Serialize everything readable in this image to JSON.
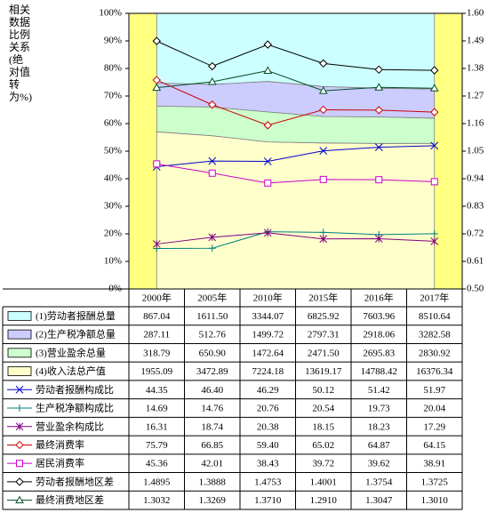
{
  "chart_data": {
    "type": "area",
    "y_label": "相关数据比例关系(绝对值转为%)",
    "categories": [
      "2000年",
      "2005年",
      "2010年",
      "2015年",
      "2016年",
      "2017年"
    ],
    "ylim": [
      0,
      100
    ],
    "yticks": [
      {
        "value": 0,
        "label": "0%"
      },
      {
        "value": 10,
        "label": "10%"
      },
      {
        "value": 20,
        "label": "20%"
      },
      {
        "value": 30,
        "label": "30%"
      },
      {
        "value": 40,
        "label": "40%"
      },
      {
        "value": 50,
        "label": "50%"
      },
      {
        "value": 60,
        "label": "60%"
      },
      {
        "value": 70,
        "label": "70%"
      },
      {
        "value": 80,
        "label": "80%"
      },
      {
        "value": 90,
        "label": "90%"
      },
      {
        "value": 100,
        "label": "100%"
      }
    ],
    "y2lim": [
      0.5,
      1.6
    ],
    "y2ticks": [
      {
        "value": 0.5,
        "label": "0.50"
      },
      0.61,
      0.72,
      0.83,
      0.94,
      1.05,
      1.16,
      1.27,
      1.38,
      1.49,
      {
        "value": 1.6,
        "label": "1.60"
      }
    ],
    "grid": false,
    "series": [
      {
        "name": "(1)劳动者报酬总量",
        "type": "area",
        "color": "#ccffff",
        "values": [
          867.04,
          1611.5,
          3344.07,
          6825.92,
          7603.96,
          8510.64
        ],
        "value_labels": [
          "867.04",
          "1611.50",
          "3344.07",
          "6825.92",
          "7603.96",
          "8510.64"
        ]
      },
      {
        "name": "(2)生产税净额总量",
        "type": "area",
        "color": "#ccccff",
        "values": [
          287.11,
          512.76,
          1499.72,
          2797.31,
          2918.06,
          3282.58
        ],
        "value_labels": [
          "287.11",
          "512.76",
          "1499.72",
          "2797.31",
          "2918.06",
          "3282.58"
        ]
      },
      {
        "name": "(3)营业盈余总量",
        "type": "area",
        "color": "#ccffcc",
        "values": [
          318.79,
          650.9,
          1472.64,
          2471.5,
          2695.83,
          2830.92
        ],
        "value_labels": [
          "318.79",
          "650.90",
          "1472.64",
          "2471.50",
          "2695.83",
          "2830.92"
        ]
      },
      {
        "name": "(4)收入法总产值",
        "type": "area",
        "color": "#ffffcc",
        "values": [
          1955.09,
          3472.89,
          7224.18,
          13619.17,
          14788.42,
          16376.34
        ],
        "value_labels": [
          "1955.09",
          "3472.89",
          "7224.18",
          "13619.17",
          "14788.42",
          "16376.34"
        ]
      },
      {
        "name": "劳动者报酬构成比",
        "type": "line",
        "marker": "x",
        "color": "#0000cc",
        "values": [
          44.35,
          46.4,
          46.29,
          50.12,
          51.42,
          51.97
        ],
        "value_labels": [
          "44.35",
          "46.40",
          "46.29",
          "50.12",
          "51.42",
          "51.97"
        ]
      },
      {
        "name": "生产税净额构成比",
        "type": "line",
        "marker": "plus",
        "color": "#008080",
        "values": [
          14.69,
          14.76,
          20.76,
          20.54,
          19.73,
          20.04
        ],
        "value_labels": [
          "14.69",
          "14.76",
          "20.76",
          "20.54",
          "19.73",
          "20.04"
        ]
      },
      {
        "name": "营业盈余构成比",
        "type": "line",
        "marker": "star",
        "color": "#800080",
        "values": [
          16.31,
          18.74,
          20.38,
          18.15,
          18.23,
          17.29
        ],
        "value_labels": [
          "16.31",
          "18.74",
          "20.38",
          "18.15",
          "18.23",
          "17.29"
        ]
      },
      {
        "name": "最终消费率",
        "type": "line",
        "marker": "diamond",
        "color": "#cc0000",
        "values": [
          75.79,
          66.85,
          59.4,
          65.02,
          64.87,
          64.15
        ],
        "value_labels": [
          "75.79",
          "66.85",
          "59.40",
          "65.02",
          "64.87",
          "64.15"
        ]
      },
      {
        "name": "居民消费率",
        "type": "line",
        "marker": "square",
        "color": "#cc00cc",
        "values": [
          45.36,
          42.01,
          38.43,
          39.72,
          39.62,
          38.91
        ],
        "value_labels": [
          "45.36",
          "42.01",
          "38.43",
          "39.72",
          "39.62",
          "38.91"
        ]
      },
      {
        "name": "劳动者报酬地区差",
        "type": "line",
        "marker": "diamond",
        "axis": "y2",
        "color": "#000000",
        "values": [
          1.4895,
          1.3888,
          1.4753,
          1.4001,
          1.3754,
          1.3725
        ],
        "value_labels": [
          "1.4895",
          "1.3888",
          "1.4753",
          "1.4001",
          "1.3754",
          "1.3725"
        ]
      },
      {
        "name": "最终消费地区差",
        "type": "line",
        "marker": "triangle",
        "axis": "y2",
        "color": "#004d26",
        "values": [
          1.3032,
          1.3269,
          1.371,
          1.291,
          1.3047,
          1.301
        ],
        "value_labels": [
          "1.3032",
          "1.3269",
          "1.3710",
          "1.2910",
          "1.3047",
          "1.3010"
        ]
      }
    ]
  }
}
